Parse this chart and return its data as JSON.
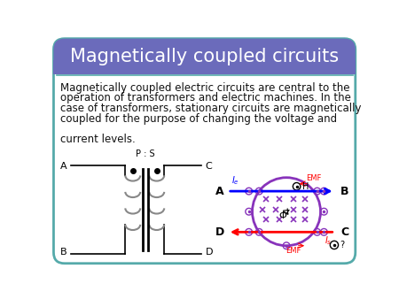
{
  "title": "Magnetically coupled circuits",
  "title_bg_color": "#6B6BBB",
  "title_text_color": "#FFFFFF",
  "slide_bg_color": "#FFFFFF",
  "border_color": "#55AAAA",
  "body_lines": [
    "Magnetically coupled electric circuits are central to the",
    "operation of transformers and electric machines. In the",
    "case of transformers, stationary circuits are magnetically",
    "coupled for the purpose of changing the voltage and",
    "",
    "current levels."
  ],
  "body_text_color": "#111111",
  "body_fontsize": 8.5,
  "title_fontsize": 15
}
